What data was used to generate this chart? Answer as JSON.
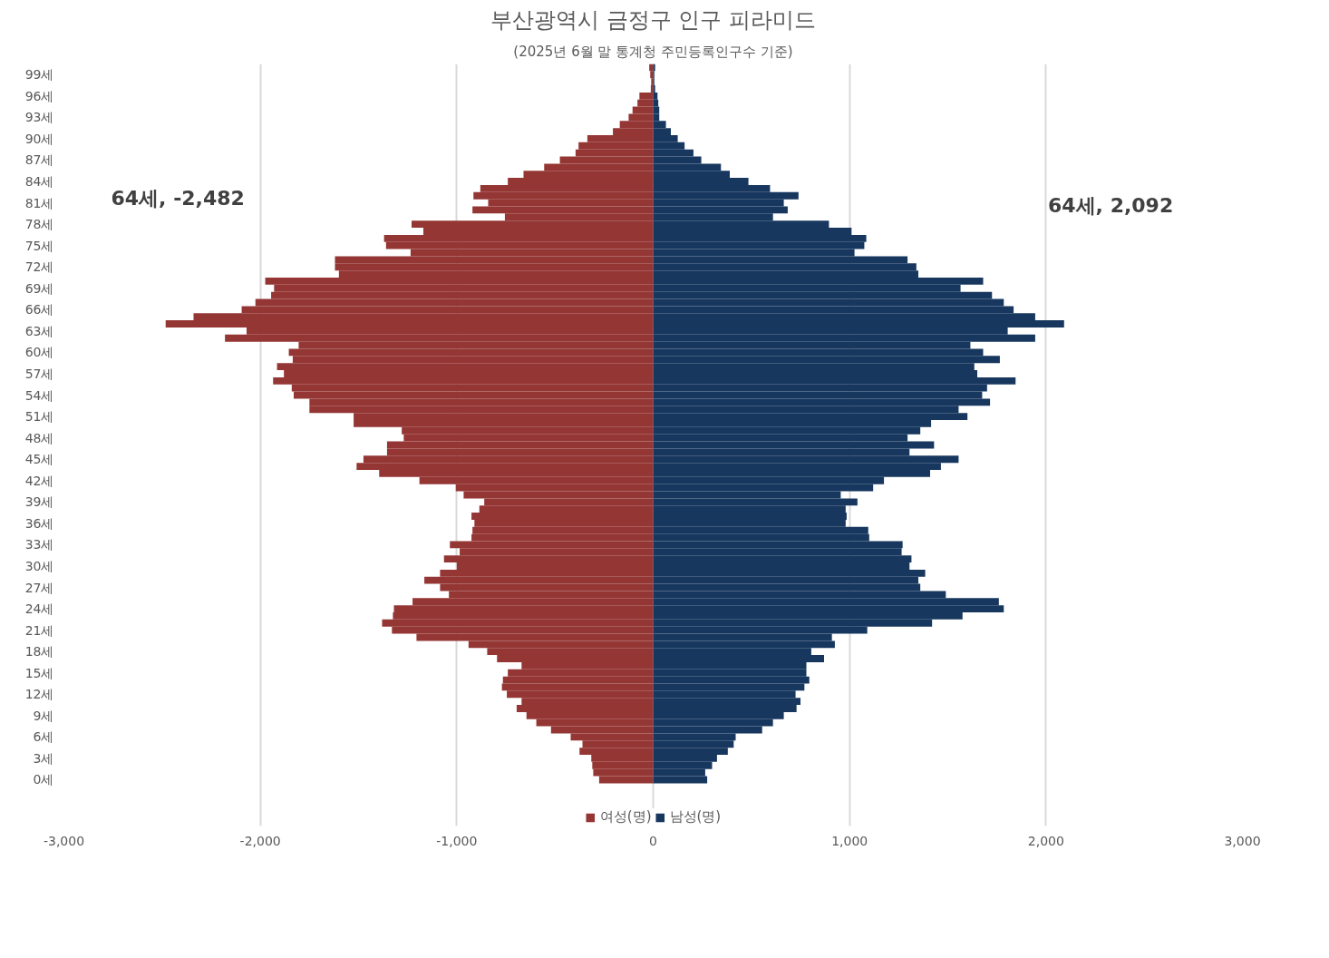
{
  "chart_data": {
    "type": "bar",
    "orientation": "horizontal",
    "title": "부산광역시 금정구 인구 피라미드",
    "subtitle": "(2025년 6월 말 통계청 주민등록인구수 기준)",
    "categories": [
      null,
      "99세",
      null,
      null,
      "96세",
      null,
      null,
      "93세",
      null,
      null,
      "90세",
      null,
      null,
      "87세",
      null,
      null,
      "84세",
      null,
      null,
      "81세",
      null,
      null,
      "78세",
      null,
      null,
      "75세",
      null,
      null,
      "72세",
      null,
      null,
      "69세",
      null,
      null,
      "66세",
      null,
      null,
      "63세",
      null,
      null,
      "60세",
      null,
      null,
      "57세",
      null,
      null,
      "54세",
      null,
      null,
      "51세",
      null,
      null,
      "48세",
      null,
      null,
      "45세",
      null,
      null,
      "42세",
      null,
      null,
      "39세",
      null,
      null,
      "36세",
      null,
      null,
      "33세",
      null,
      null,
      "30세",
      null,
      null,
      "27세",
      null,
      null,
      "24세",
      null,
      null,
      "21세",
      null,
      null,
      "18세",
      null,
      null,
      "15세",
      null,
      null,
      "12세",
      null,
      null,
      "9세",
      null,
      null,
      "6세",
      null,
      null,
      "3세",
      null,
      null,
      "0세"
    ],
    "series": [
      {
        "name": "여성(명)",
        "color": "#943634",
        "values": [
          -20,
          -15,
          -10,
          -12,
          -70,
          -80,
          -105,
          -125,
          -170,
          -205,
          -335,
          -380,
          -395,
          -475,
          -555,
          -660,
          -740,
          -880,
          -915,
          -840,
          -920,
          -755,
          -1230,
          -1170,
          -1370,
          -1360,
          -1235,
          -1620,
          -1620,
          -1600,
          -1975,
          -1930,
          -1945,
          -2025,
          -2095,
          -2340,
          -2482,
          -2070,
          -2180,
          -1805,
          -1855,
          -1835,
          -1915,
          -1880,
          -1935,
          -1840,
          -1830,
          -1750,
          -1750,
          -1525,
          -1525,
          -1280,
          -1270,
          -1355,
          -1355,
          -1475,
          -1510,
          -1395,
          -1190,
          -1005,
          -965,
          -860,
          -885,
          -925,
          -910,
          -920,
          -925,
          -1035,
          -985,
          -1065,
          -1000,
          -1085,
          -1165,
          -1085,
          -1040,
          -1225,
          -1320,
          -1325,
          -1380,
          -1330,
          -1205,
          -940,
          -845,
          -795,
          -670,
          -740,
          -765,
          -770,
          -745,
          -670,
          -695,
          -645,
          -595,
          -520,
          -420,
          -360,
          -375,
          -315,
          -310,
          -305,
          -275
        ]
      },
      {
        "name": "남성(명)",
        "color": "#17375e",
        "values": [
          10,
          6,
          6,
          10,
          22,
          26,
          31,
          31,
          65,
          90,
          125,
          160,
          205,
          245,
          345,
          390,
          485,
          595,
          740,
          665,
          685,
          610,
          895,
          1010,
          1085,
          1075,
          1025,
          1295,
          1340,
          1350,
          1680,
          1565,
          1725,
          1785,
          1835,
          1945,
          2092,
          1805,
          1945,
          1615,
          1680,
          1765,
          1635,
          1650,
          1845,
          1700,
          1675,
          1715,
          1555,
          1600,
          1415,
          1360,
          1295,
          1430,
          1305,
          1555,
          1465,
          1410,
          1175,
          1120,
          955,
          1040,
          980,
          985,
          980,
          1095,
          1100,
          1270,
          1265,
          1315,
          1305,
          1385,
          1350,
          1360,
          1490,
          1760,
          1785,
          1575,
          1420,
          1090,
          910,
          925,
          805,
          870,
          780,
          780,
          795,
          770,
          725,
          750,
          730,
          665,
          610,
          555,
          420,
          410,
          380,
          325,
          300,
          265,
          275
        ]
      }
    ],
    "xlim": [
      -3000,
      3000
    ],
    "xticks": [
      {
        "value": -3000,
        "label": "-3,000"
      },
      {
        "value": -2000,
        "label": "-2,000"
      },
      {
        "value": -1000,
        "label": "-1,000"
      },
      0,
      {
        "value": 1000,
        "label": "1,000"
      },
      {
        "value": 2000,
        "label": "2,000"
      },
      {
        "value": 3000,
        "label": "3,000"
      }
    ],
    "grid": "x",
    "legend": "bottom",
    "stacked": true,
    "annotations": [
      "64세, -2,482",
      "64세, 2,092"
    ]
  }
}
